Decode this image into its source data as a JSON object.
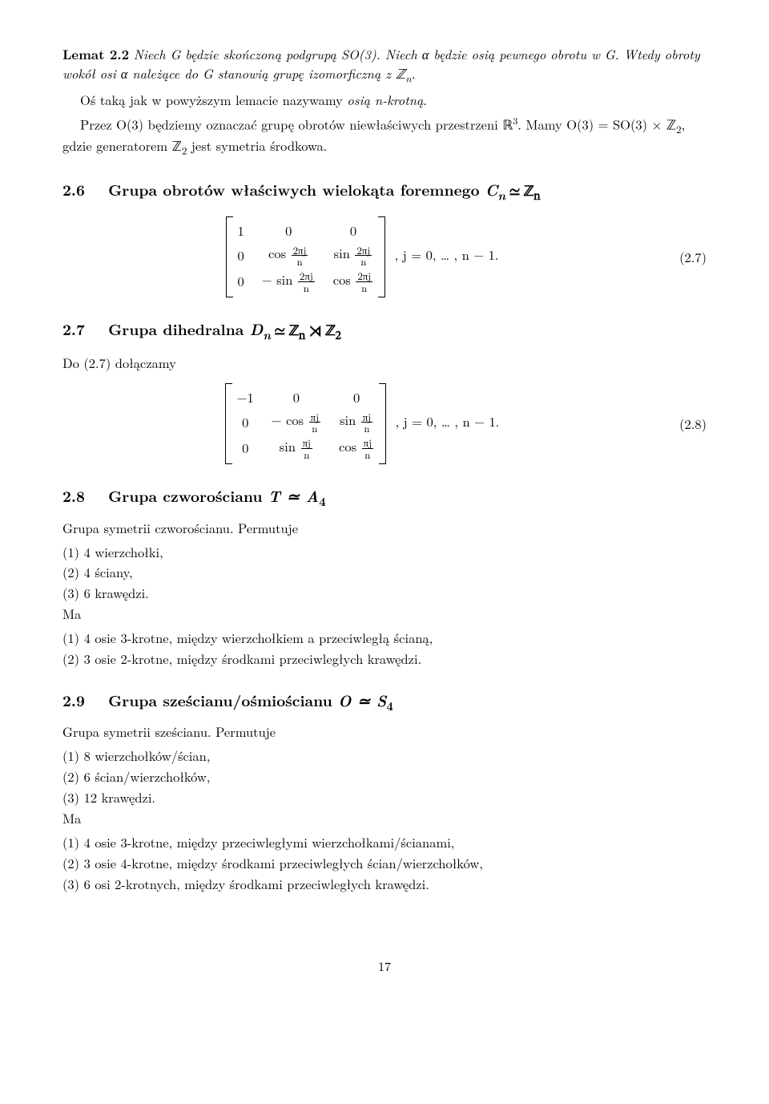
{
  "lemma": {
    "label": "Lemat 2.2",
    "body_a": "Niech G będzie skończoną podgrupą SO(3). Niech α będzie osią pewnego obrotu w G. Wtedy obroty wokół osi α należące do G stanowią grupę izomorficzną z ℤ",
    "body_a_sub": "n",
    "body_a_end": "."
  },
  "para1_a": "Oś taką jak w powyższym lemacie nazywamy ",
  "para1_em": "osią n-krotną",
  "para1_b": ".",
  "para2_a": "Przez O(3) będziemy oznaczać grupę obrotów niewłaściwych przestrzeni ℝ",
  "para2_sup": "3",
  "para2_b": ". Mamy O(3) = SO(3) × ℤ",
  "para2_sub1": "2",
  "para2_c": ", gdzie generatorem ℤ",
  "para2_sub2": "2",
  "para2_d": " jest symetria środkowa.",
  "sec26": {
    "num": "2.6",
    "title_a": "Grupa obrotów właściwych wielokąta foremnego ",
    "title_b": "C",
    "title_b_sub": "n",
    "title_c": " ≃ ℤ",
    "title_c_sub": "n"
  },
  "mat1": {
    "r0c0": "1",
    "r0c1": "0",
    "r0c2": "0",
    "r1c0": "0",
    "r1c1_pre": "cos ",
    "r1c1_num": "2πj",
    "r1c1_den": "n",
    "r1c2_pre": "sin ",
    "r1c2_num": "2πj",
    "r1c2_den": "n",
    "r2c0": "0",
    "r2c1_pre": "− sin ",
    "r2c1_num": "2πj",
    "r2c1_den": "n",
    "r2c2_pre": "cos ",
    "r2c2_num": "2πj",
    "r2c2_den": "n",
    "after": ",   j = 0, … , n − 1.",
    "tag": "(2.7)"
  },
  "sec27": {
    "num": "2.7",
    "title_a": "Grupa dihedralna ",
    "title_b": "D",
    "title_b_sub": "n",
    "title_c": " ≃ ℤ",
    "title_c_sub": "n",
    "title_d": " ⋊ ℤ",
    "title_d_sub": "2"
  },
  "do27": "Do (2.7) dołączamy",
  "mat2": {
    "r0c0": "−1",
    "r0c1": "0",
    "r0c2": "0",
    "r1c0": "0",
    "r1c1_pre": "− cos ",
    "r1c1_num": "πj",
    "r1c1_den": "n",
    "r1c2_pre": "sin ",
    "r1c2_num": "πj",
    "r1c2_den": "n",
    "r2c0": "0",
    "r2c1_pre": "sin ",
    "r2c1_num": "πj",
    "r2c1_den": "n",
    "r2c2_pre": "cos ",
    "r2c2_num": "πj",
    "r2c2_den": "n",
    "after": ",   j = 0, … , n − 1.",
    "tag": "(2.8)"
  },
  "sec28": {
    "num": "2.8",
    "title_a": "Grupa czworościanu ",
    "title_b": "T ≃ A",
    "title_b_sub": "4"
  },
  "p28a": "Grupa symetrii czworościanu. Permutuje",
  "l28a1": "(1) 4 wierzchołki,",
  "l28a2": "(2) 4 ściany,",
  "l28a3": "(3) 6 krawędzi.",
  "ma": "Ma",
  "l28b1": "(1) 4 osie 3-krotne, między wierzchołkiem a przeciwległą ścianą,",
  "l28b2": "(2) 3 osie 2-krotne, między środkami przeciwległych krawędzi.",
  "sec29": {
    "num": "2.9",
    "title_a": "Grupa sześcianu/ośmiościanu ",
    "title_b": "O ≃ S",
    "title_b_sub": "4"
  },
  "p29a": "Grupa symetrii sześcianu. Permutuje",
  "l29a1": "(1) 8 wierzchołków/ścian,",
  "l29a2": "(2) 6 ścian/wierzchołków,",
  "l29a3": "(3) 12 krawędzi.",
  "l29b1": "(1) 4 osie 3-krotne, między przeciwległymi wierzchołkami/ścianami,",
  "l29b2": "(2) 3 osie 4-krotne, między środkami przeciwległych ścian/wierzchołków,",
  "l29b3": "(3) 6 osi 2-krotnych, między środkami przeciwległych krawędzi.",
  "pagenum": "17"
}
